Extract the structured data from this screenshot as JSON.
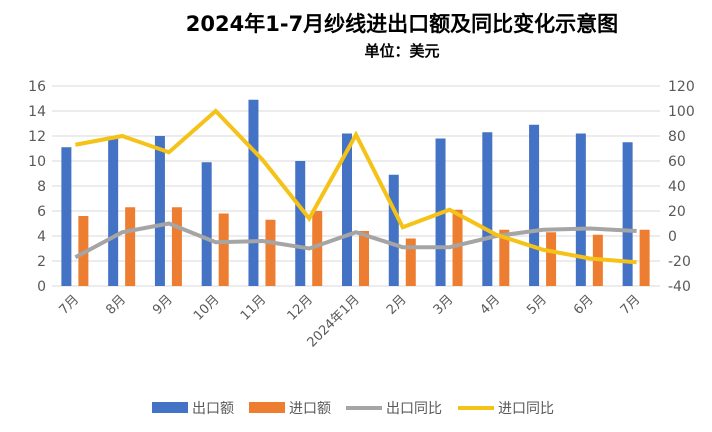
{
  "chart_data": {
    "type": "bar",
    "title": "2024年1-7月纱线进出口额及同比变化示意图",
    "subtitle": "单位：美元",
    "categories": [
      "7月",
      "8月",
      "9月",
      "10月",
      "11月",
      "12月",
      "2024年1月",
      "2月",
      "3月",
      "4月",
      "5月",
      "6月",
      "7月"
    ],
    "y_left": {
      "range": [
        0,
        16
      ],
      "ticks": [
        0,
        2,
        4,
        6,
        8,
        10,
        12,
        14,
        16
      ]
    },
    "y_right": {
      "range": [
        -40,
        120
      ],
      "ticks": [
        -40,
        -20,
        0,
        20,
        40,
        60,
        80,
        100,
        120
      ]
    },
    "grid": true,
    "legend": "bottom",
    "series": [
      {
        "name": "出口额",
        "type": "bar",
        "axis": "left",
        "color": "#4472C4",
        "values": [
          11.1,
          11.8,
          12.0,
          9.9,
          14.9,
          10.0,
          12.2,
          8.9,
          11.8,
          12.3,
          12.9,
          12.2,
          11.5
        ]
      },
      {
        "name": "进口额",
        "type": "bar",
        "axis": "left",
        "color": "#ED7D31",
        "values": [
          5.6,
          6.3,
          6.3,
          5.8,
          5.3,
          6.0,
          4.4,
          3.8,
          6.1,
          4.5,
          4.3,
          4.1,
          4.5
        ]
      },
      {
        "name": "出口同比",
        "type": "line",
        "axis": "right",
        "color": "#A5A5A5",
        "values": [
          -17,
          3,
          10,
          -5,
          -4,
          -10,
          3,
          -9,
          -9,
          0,
          5,
          6,
          4
        ]
      },
      {
        "name": "进口同比",
        "type": "line",
        "axis": "right",
        "color": "#F5C217",
        "values": [
          73,
          80,
          67,
          100,
          61,
          14,
          81,
          7,
          21,
          1,
          -11,
          -18,
          -21
        ]
      }
    ]
  }
}
